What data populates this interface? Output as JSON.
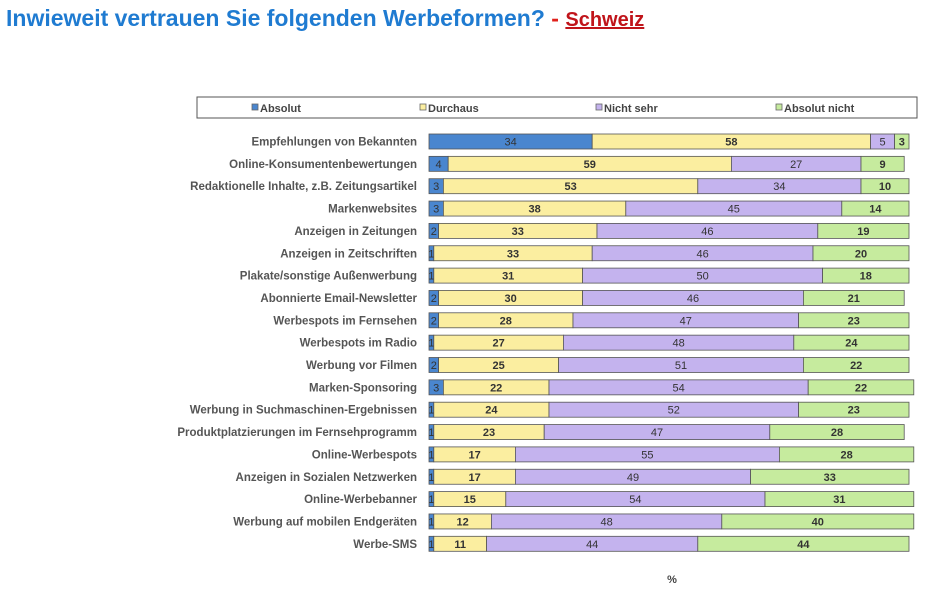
{
  "title": {
    "main": "Inwieweit vertrauen Sie folgenden Werbeformen?",
    "separator": "-",
    "country": "Schweiz"
  },
  "chart_data": {
    "type": "bar",
    "orientation": "horizontal",
    "stacked": true,
    "xlabel": "%",
    "legend_position": "top",
    "categories": [
      "Empfehlungen von Bekannten",
      "Online-Konsumentenbewertungen",
      "Redaktionelle Inhalte, z.B. Zeitungsartikel",
      "Markenwebsites",
      "Anzeigen in Zeitungen",
      "Anzeigen in Zeitschriften",
      "Plakate/sonstige Außenwerbung",
      "Abonnierte Email-Newsletter",
      "Werbespots im Fernsehen",
      "Werbespots im Radio",
      "Werbung vor Filmen",
      "Marken-Sponsoring",
      "Werbung in Suchmaschinen-Ergebnissen",
      "Produktplatzierungen im Fernsehprogramm",
      "Online-Werbespots",
      "Anzeigen in Sozialen Netzwerken",
      "Online-Werbebanner",
      "Werbung auf mobilen Endgeräten",
      "Werbe-SMS"
    ],
    "series": [
      {
        "name": "Absolut",
        "color": "#4a86cf",
        "values": [
          34,
          4,
          3,
          3,
          2,
          1,
          1,
          2,
          2,
          1,
          2,
          3,
          1,
          1,
          1,
          1,
          1,
          1,
          1
        ]
      },
      {
        "name": "Durchaus",
        "color": "#fbeea0",
        "values": [
          58,
          59,
          53,
          38,
          33,
          33,
          31,
          30,
          28,
          27,
          25,
          22,
          24,
          23,
          17,
          17,
          15,
          12,
          11
        ]
      },
      {
        "name": "Nicht sehr",
        "color": "#c4b3ee",
        "values": [
          5,
          27,
          34,
          45,
          46,
          46,
          50,
          46,
          47,
          48,
          51,
          54,
          52,
          47,
          55,
          49,
          54,
          48,
          44
        ]
      },
      {
        "name": "Absolut nicht",
        "color": "#c6eb9e",
        "values": [
          3,
          9,
          10,
          14,
          19,
          20,
          18,
          21,
          23,
          24,
          22,
          22,
          23,
          28,
          28,
          33,
          31,
          40,
          44
        ]
      }
    ]
  }
}
